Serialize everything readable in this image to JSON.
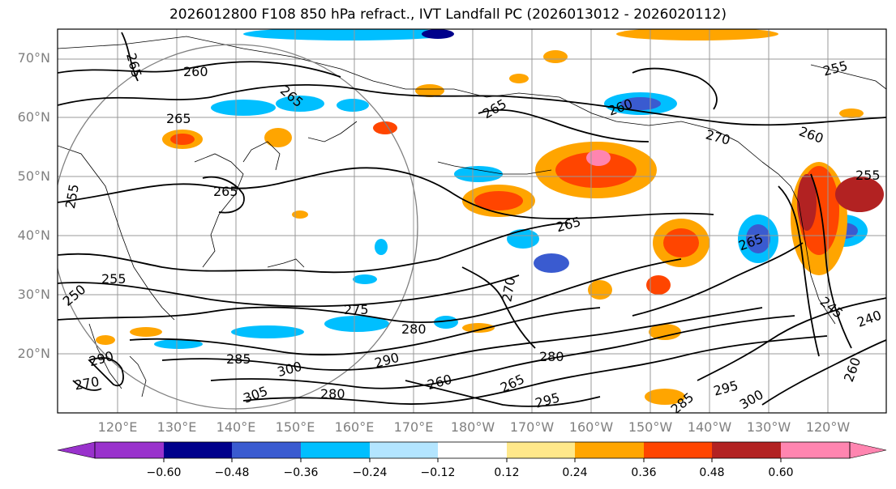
{
  "title": "2026012800 F108 850 hPa refract., IVT Landfall PC (2026013012 - 2026020112)",
  "lat_labels": [
    "70°N",
    "60°N",
    "50°N",
    "40°N",
    "30°N",
    "20°N"
  ],
  "lon_labels": [
    "120°E",
    "130°E",
    "140°E",
    "150°E",
    "160°E",
    "170°E",
    "180°W",
    "170°W",
    "160°W",
    "150°W",
    "140°W",
    "130°W",
    "120°W"
  ],
  "colorbar": {
    "ticks": [
      "−0.60",
      "−0.48",
      "−0.36",
      "−0.24",
      "−0.12",
      "0.12",
      "0.24",
      "0.36",
      "0.48",
      "0.60"
    ],
    "colors": [
      "#9932cc",
      "#00008b",
      "#3a5bd0",
      "#00bfff",
      "#b3e5ff",
      "#ffffff",
      "#ffe88a",
      "#ffa500",
      "#ff4500",
      "#b22222",
      "#ff85b0"
    ]
  },
  "contour_labels": [
    "265",
    "260",
    "265",
    "265",
    "265",
    "270",
    "260",
    "255",
    "260",
    "255",
    "250",
    "265",
    "265",
    "275",
    "270",
    "280",
    "285",
    "300",
    "290",
    "280",
    "260",
    "265",
    "305",
    "295",
    "280",
    "285",
    "295",
    "300",
    "260",
    "245",
    "240",
    "265",
    "255",
    "290",
    "270",
    "255"
  ]
}
